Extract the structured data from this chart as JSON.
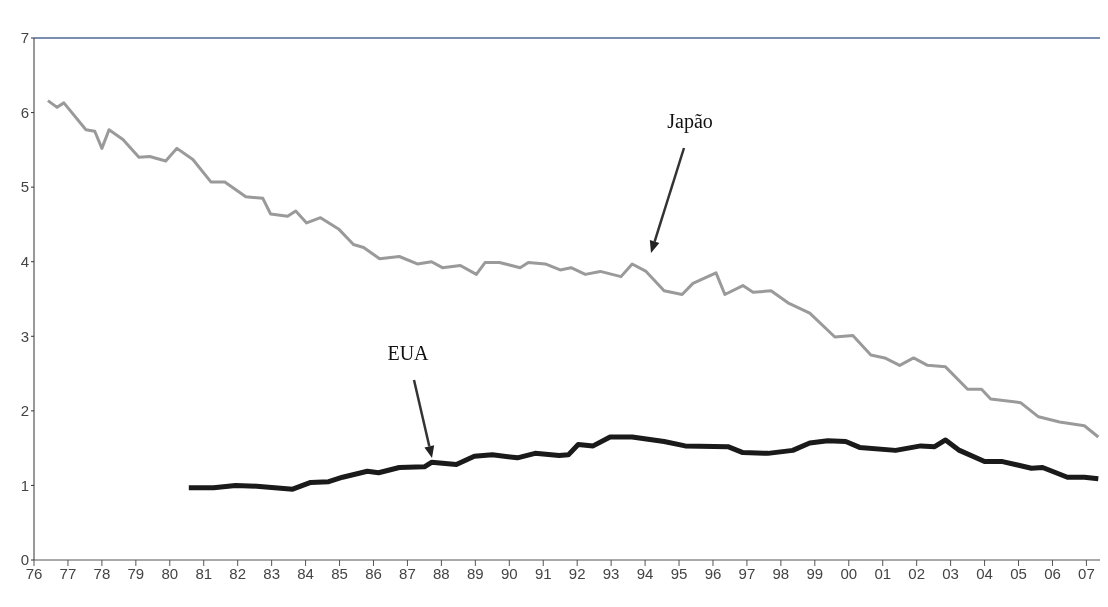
{
  "chart_data": {
    "type": "line",
    "xlim": [
      1976,
      2007.4
    ],
    "ylim": [
      0,
      7
    ],
    "xticks": [
      {
        "value": 1976,
        "label": "76"
      },
      {
        "value": 1977,
        "label": "77"
      },
      {
        "value": 1978,
        "label": "78"
      },
      {
        "value": 1979,
        "label": "79"
      },
      {
        "value": 1980,
        "label": "80"
      },
      {
        "value": 1981,
        "label": "81"
      },
      {
        "value": 1982,
        "label": "82"
      },
      {
        "value": 1983,
        "label": "83"
      },
      {
        "value": 1984,
        "label": "84"
      },
      {
        "value": 1985,
        "label": "85"
      },
      {
        "value": 1986,
        "label": "86"
      },
      {
        "value": 1987,
        "label": "87"
      },
      {
        "value": 1988,
        "label": "88"
      },
      {
        "value": 1989,
        "label": "89"
      },
      {
        "value": 1990,
        "label": "90"
      },
      {
        "value": 1991,
        "label": "91"
      },
      {
        "value": 1992,
        "label": "92"
      },
      {
        "value": 1993,
        "label": "93"
      },
      {
        "value": 1994,
        "label": "94"
      },
      {
        "value": 1995,
        "label": "95"
      },
      {
        "value": 1996,
        "label": "96"
      },
      {
        "value": 1997,
        "label": "97"
      },
      {
        "value": 1998,
        "label": "98"
      },
      {
        "value": 1999,
        "label": "99"
      },
      {
        "value": 2000,
        "label": "00"
      },
      {
        "value": 2001,
        "label": "01"
      },
      {
        "value": 2002,
        "label": "02"
      },
      {
        "value": 2003,
        "label": "03"
      },
      {
        "value": 2004,
        "label": "04"
      },
      {
        "value": 2005,
        "label": "05"
      },
      {
        "value": 2006,
        "label": "06"
      },
      {
        "value": 2007,
        "label": "07"
      }
    ],
    "yticks": [
      0,
      1,
      2,
      3,
      4,
      5,
      6,
      7
    ],
    "marker": "none",
    "line_style": "solid",
    "series": [
      {
        "color": "#9a9a9a",
        "x": [
          1976.41,
          1976.68,
          1976.88,
          1977.53,
          1977.79,
          1978.0,
          1978.21,
          1978.62,
          1979.09,
          1979.41,
          1979.88,
          1980.21,
          1980.68,
          1981.21,
          1981.62,
          1982.24,
          1982.74,
          1982.97,
          1983.47,
          1983.71,
          1984.03,
          1984.44,
          1984.97,
          1985.41,
          1985.71,
          1986.18,
          1986.76,
          1987.29,
          1987.71,
          1988.03,
          1988.56,
          1989.03,
          1989.29,
          1989.71,
          1990.32,
          1990.56,
          1991.06,
          1991.5,
          1991.82,
          1992.24,
          1992.68,
          1993.29,
          1993.62,
          1994.03,
          1994.56,
          1995.09,
          1995.41,
          1996.09,
          1996.35,
          1996.88,
          1997.18,
          1997.71,
          1998.24,
          1998.85,
          1999.59,
          2000.12,
          2000.65,
          2001.06,
          2001.5,
          2001.91,
          2002.32,
          2002.85,
          2003.5,
          2003.91,
          2004.18,
          2005.06,
          2005.59,
          2006.21,
          2006.94,
          2007.35
        ],
        "values": [
          6.16,
          6.07,
          6.13,
          5.77,
          5.75,
          5.52,
          5.77,
          5.64,
          5.4,
          5.41,
          5.35,
          5.52,
          5.37,
          5.07,
          5.07,
          4.87,
          4.85,
          4.64,
          4.61,
          4.68,
          4.52,
          4.59,
          4.44,
          4.23,
          4.19,
          4.04,
          4.07,
          3.97,
          4.0,
          3.92,
          3.95,
          3.83,
          3.99,
          3.99,
          3.92,
          3.99,
          3.97,
          3.89,
          3.92,
          3.83,
          3.87,
          3.8,
          3.97,
          3.87,
          3.61,
          3.56,
          3.71,
          3.85,
          3.56,
          3.68,
          3.59,
          3.61,
          3.44,
          3.31,
          2.99,
          3.01,
          2.75,
          2.71,
          2.61,
          2.71,
          2.61,
          2.59,
          2.29,
          2.29,
          2.16,
          2.11,
          1.92,
          1.85,
          1.8,
          1.65
        ]
      },
      {
        "color": "#1a1a1a",
        "x": [
          1980.56,
          1981.29,
          1981.94,
          1982.56,
          1983.62,
          1984.15,
          1984.68,
          1985.09,
          1985.82,
          1986.15,
          1986.76,
          1987.5,
          1987.71,
          1988.44,
          1988.97,
          1989.5,
          1990.24,
          1990.76,
          1991.47,
          1991.74,
          1992.03,
          1992.47,
          1992.97,
          1993.62,
          1994.56,
          1995.18,
          1996.44,
          1996.88,
          1997.62,
          1998.35,
          1998.85,
          1999.38,
          1999.91,
          2000.32,
          2001.38,
          2002.12,
          2002.53,
          2002.85,
          2003.26,
          2004.0,
          2004.53,
          2005.38,
          2005.71,
          2006.44,
          2006.94,
          2007.35
        ],
        "values": [
          0.97,
          0.97,
          1.0,
          0.99,
          0.95,
          1.04,
          1.05,
          1.11,
          1.19,
          1.17,
          1.24,
          1.25,
          1.31,
          1.28,
          1.39,
          1.41,
          1.37,
          1.43,
          1.4,
          1.41,
          1.55,
          1.53,
          1.65,
          1.65,
          1.59,
          1.53,
          1.52,
          1.44,
          1.43,
          1.47,
          1.57,
          1.6,
          1.59,
          1.51,
          1.47,
          1.53,
          1.52,
          1.61,
          1.47,
          1.32,
          1.32,
          1.23,
          1.24,
          1.11,
          1.11,
          1.09
        ]
      }
    ],
    "annotations": [
      "Japão",
      "EUA"
    ]
  }
}
